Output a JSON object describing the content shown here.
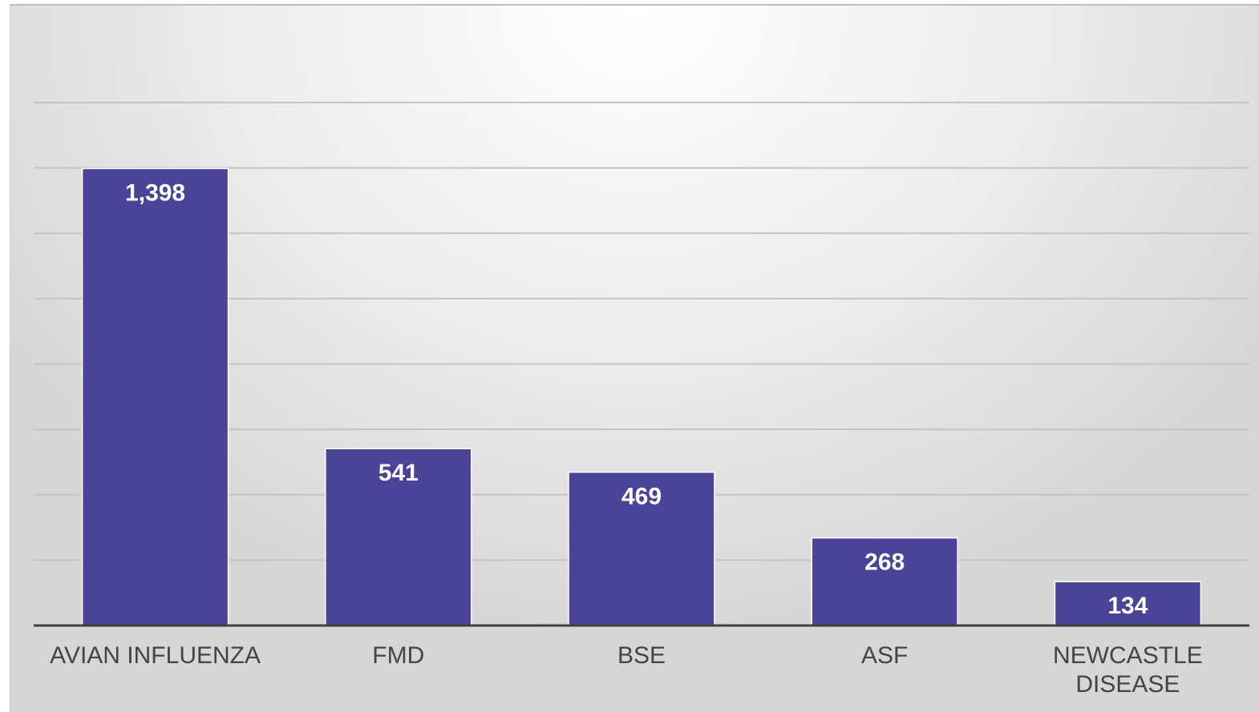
{
  "chart_data": {
    "type": "bar",
    "categories": [
      "AVIAN INFLUENZA",
      "FMD",
      "BSE",
      "ASF",
      "NEWCASTLE DISEASE"
    ],
    "values": [
      1398,
      541,
      469,
      268,
      134
    ],
    "value_labels": [
      "1,398",
      "541",
      "469",
      "268",
      "134"
    ],
    "color": "#4a4397",
    "ylim": [
      0,
      1600
    ],
    "yticks": [
      0,
      200,
      400,
      600,
      800,
      1000,
      1200,
      1400,
      1600
    ],
    "grid": true
  }
}
